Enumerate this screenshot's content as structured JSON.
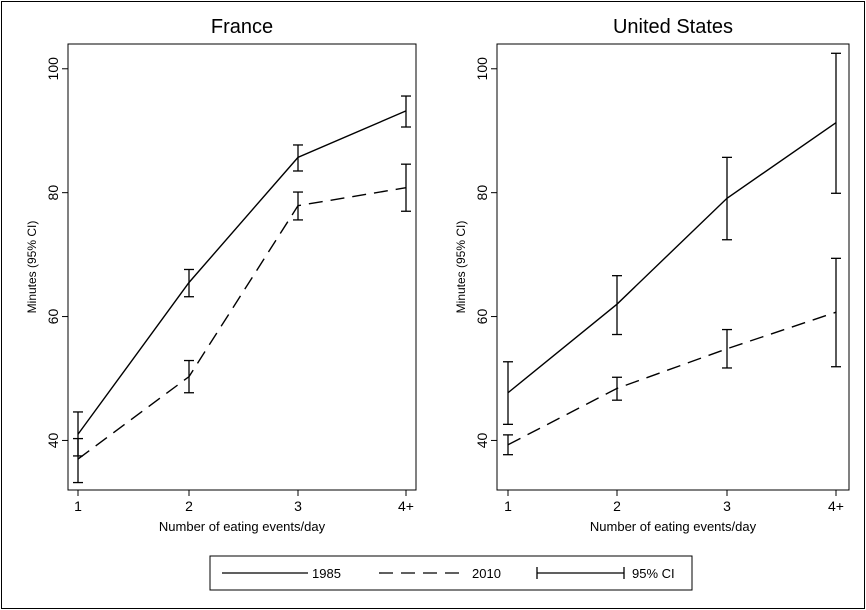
{
  "chart_data": [
    {
      "type": "line",
      "title": "France",
      "xlabel": "Number of eating events/day",
      "ylabel": "Minutes (95% CI)",
      "categories": [
        "1",
        "2",
        "3",
        "4+"
      ],
      "yticks": [
        40,
        60,
        80,
        100
      ],
      "ylim": [
        32,
        104
      ],
      "grid": false,
      "series": [
        {
          "name": "1985",
          "style": "solid",
          "values": [
            41,
            65.5,
            85.7,
            93.2
          ],
          "ci_low": [
            37.5,
            63.2,
            83.5,
            90.6
          ],
          "ci_high": [
            44.6,
            67.6,
            87.7,
            95.6
          ]
        },
        {
          "name": "2010",
          "style": "dashed",
          "values": [
            37,
            50.3,
            77.9,
            80.8
          ],
          "ci_low": [
            33.2,
            47.7,
            75.6,
            77
          ],
          "ci_high": [
            40.3,
            52.9,
            80.1,
            84.6
          ]
        }
      ]
    },
    {
      "type": "line",
      "title": "United States",
      "xlabel": "Number of eating events/day",
      "ylabel": "Minutes (95% CI)",
      "categories": [
        "1",
        "2",
        "3",
        "4+"
      ],
      "yticks": [
        40,
        60,
        80,
        100
      ],
      "ylim": [
        32,
        104
      ],
      "grid": false,
      "series": [
        {
          "name": "1985",
          "style": "solid",
          "values": [
            47.7,
            62,
            79.1,
            91.3
          ],
          "ci_low": [
            42.6,
            57.1,
            72.4,
            79.9
          ],
          "ci_high": [
            52.7,
            66.6,
            85.7,
            102.5
          ]
        },
        {
          "name": "2010",
          "style": "dashed",
          "values": [
            39.3,
            48.4,
            54.8,
            60.7
          ],
          "ci_low": [
            37.7,
            46.5,
            51.7,
            51.9
          ],
          "ci_high": [
            40.9,
            50.2,
            57.9,
            69.4
          ]
        }
      ]
    }
  ],
  "legend": {
    "position": "bottom",
    "items": [
      {
        "label": "1985",
        "kind": "solid"
      },
      {
        "label": "2010",
        "kind": "dashed"
      },
      {
        "label": "95% CI",
        "kind": "errorbar"
      }
    ]
  }
}
